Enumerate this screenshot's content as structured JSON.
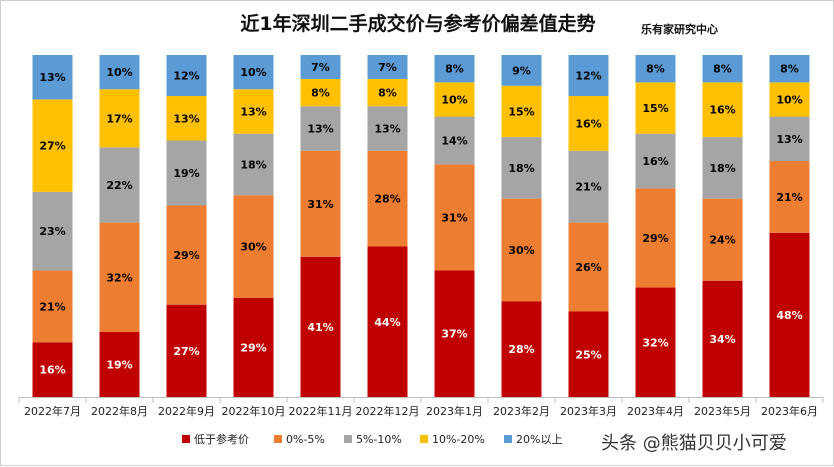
{
  "title": "近1年深圳二手成交价与参考价偏差值走势",
  "source_label": "乐有家研究中心",
  "credit": "头条 @熊猫贝贝小可爱",
  "chart_data": {
    "type": "bar",
    "stacked": true,
    "normalized": true,
    "title": "近1年深圳二手成交价与参考价偏差值走势",
    "categories": [
      "2022年7月",
      "2022年8月",
      "2022年9月",
      "2022年10月",
      "2022年11月",
      "2022年12月",
      "2023年1月",
      "2023年2月",
      "2023年3月",
      "2023年4月",
      "2023年5月",
      "2023年6月"
    ],
    "series": [
      {
        "name": "低于参考价",
        "color": "#C00000",
        "values": [
          16,
          19,
          27,
          29,
          41,
          44,
          37,
          28,
          25,
          32,
          34,
          48
        ]
      },
      {
        "name": "0%-5%",
        "color": "#ED7D31",
        "values": [
          21,
          32,
          29,
          30,
          31,
          28,
          31,
          30,
          26,
          29,
          24,
          21
        ]
      },
      {
        "name": "5%-10%",
        "color": "#A5A5A5",
        "values": [
          23,
          22,
          19,
          18,
          13,
          13,
          14,
          18,
          21,
          16,
          18,
          13
        ]
      },
      {
        "name": "10%-20%",
        "color": "#FFC000",
        "values": [
          27,
          17,
          13,
          13,
          8,
          8,
          10,
          15,
          16,
          15,
          16,
          10
        ]
      },
      {
        "name": "20%以上",
        "color": "#5B9BD5",
        "values": [
          13,
          10,
          12,
          10,
          7,
          7,
          8,
          9,
          12,
          8,
          8,
          8
        ]
      }
    ],
    "label_suffix": "%",
    "legend_position": "bottom",
    "grid": false
  }
}
